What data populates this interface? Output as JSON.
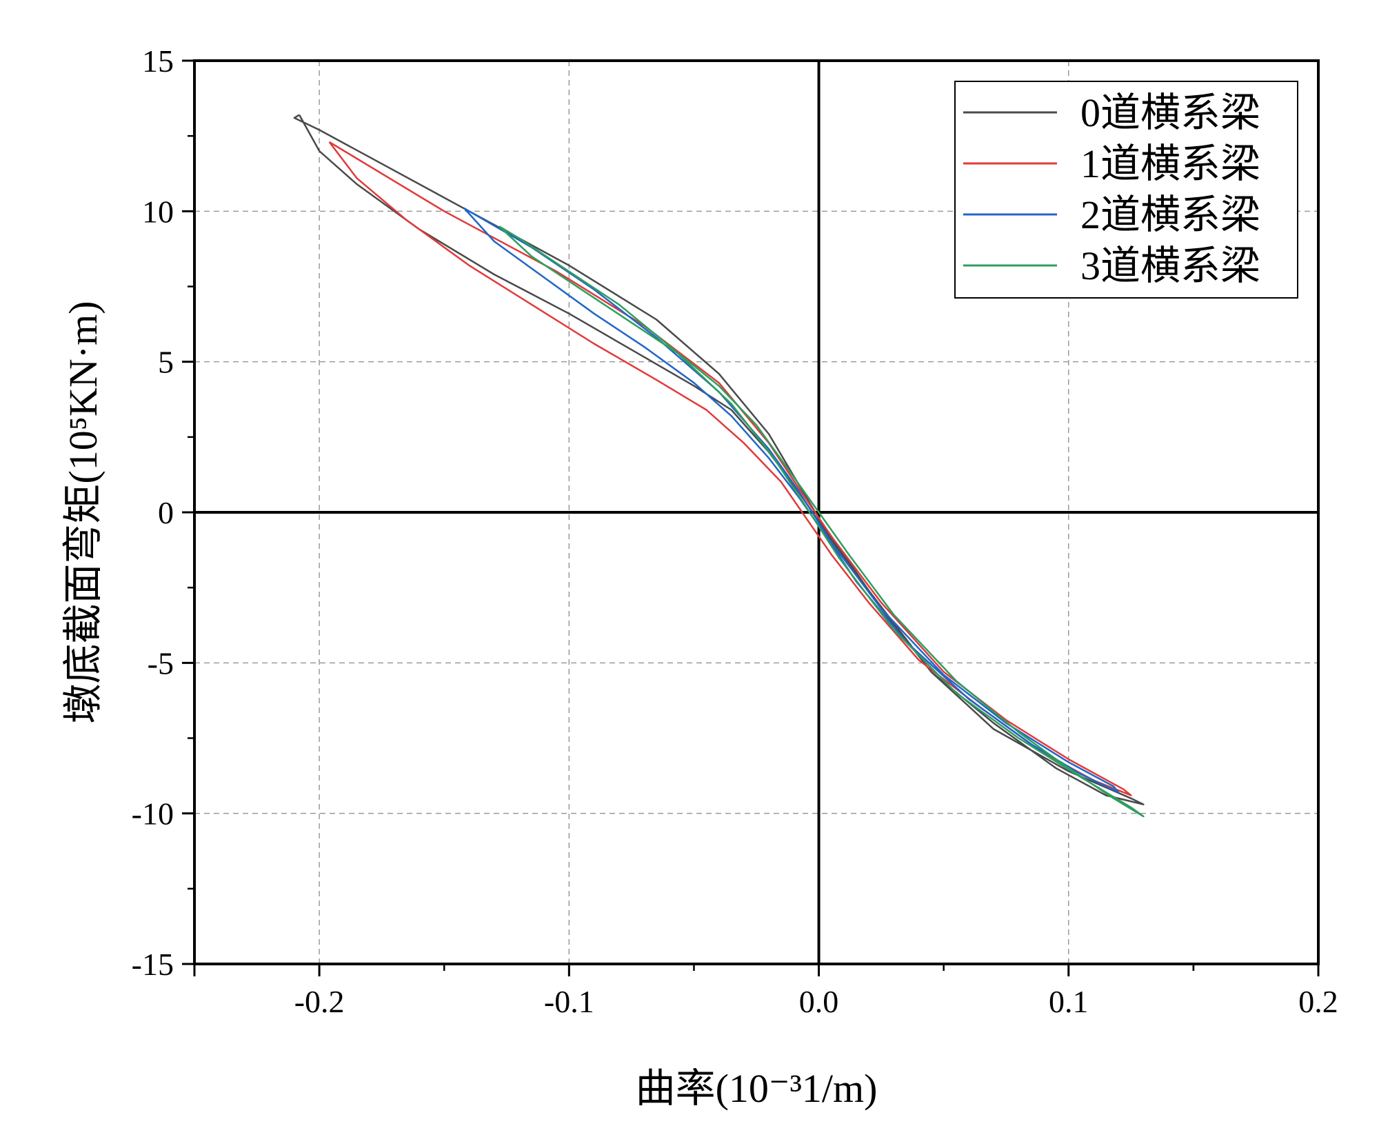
{
  "chart_data": {
    "type": "line",
    "title": "",
    "xlabel": "曲率(10⁻³1/m)",
    "ylabel": "墩底截面弯矩(10⁵KN·m)",
    "xlim": [
      -0.25,
      0.2
    ],
    "ylim": [
      -15,
      15
    ],
    "xticks": [
      -0.2,
      -0.1,
      0.0,
      0.1,
      0.2
    ],
    "xtick_labels": [
      "-0.2",
      "-0.1",
      "0.0",
      "0.1",
      "0.2"
    ],
    "yticks": [
      -15,
      -10,
      -5,
      0,
      5,
      10,
      15
    ],
    "ytick_labels": [
      "-15",
      "-10",
      "-5",
      "0",
      "5",
      "10",
      "15"
    ],
    "grid": true,
    "zero_lines": true,
    "legend_position": "top-right",
    "series": [
      {
        "name": "0道横系梁",
        "color": "#4a4a4a",
        "x": [
          -0.208,
          -0.2,
          -0.185,
          -0.16,
          -0.13,
          -0.1,
          -0.075,
          -0.05,
          -0.035,
          -0.02,
          -0.01,
          0.0,
          0.01,
          0.025,
          0.045,
          0.07,
          0.095,
          0.115,
          0.13,
          0.125,
          0.1,
          0.07,
          0.045,
          0.02,
          0.0,
          -0.01,
          -0.02,
          -0.04,
          -0.065,
          -0.1,
          -0.14,
          -0.18,
          -0.2,
          -0.21,
          -0.208
        ],
        "y": [
          13.2,
          12.0,
          10.9,
          9.4,
          7.9,
          6.6,
          5.4,
          4.2,
          3.4,
          2.0,
          0.9,
          -0.3,
          -1.5,
          -3.2,
          -5.3,
          -7.0,
          -8.5,
          -9.4,
          -9.7,
          -9.5,
          -8.6,
          -7.2,
          -5.3,
          -2.6,
          -0.2,
          1.2,
          2.6,
          4.6,
          6.4,
          8.2,
          10.0,
          11.8,
          12.7,
          13.1,
          13.2
        ]
      },
      {
        "name": "1道横系梁",
        "color": "#e03a3a",
        "x": [
          -0.196,
          -0.185,
          -0.165,
          -0.14,
          -0.115,
          -0.09,
          -0.065,
          -0.045,
          -0.03,
          -0.015,
          -0.005,
          0.005,
          0.02,
          0.04,
          0.065,
          0.09,
          0.11,
          0.125,
          0.122,
          0.1,
          0.075,
          0.05,
          0.025,
          0.005,
          -0.008,
          -0.02,
          -0.04,
          -0.07,
          -0.105,
          -0.15,
          -0.19,
          -0.196
        ],
        "y": [
          12.3,
          11.1,
          9.7,
          8.2,
          6.9,
          5.6,
          4.4,
          3.4,
          2.3,
          1.0,
          -0.2,
          -1.4,
          -3.0,
          -4.9,
          -6.5,
          -8.0,
          -8.9,
          -9.4,
          -9.2,
          -8.2,
          -6.9,
          -5.3,
          -3.0,
          -0.8,
          0.8,
          2.3,
          4.3,
          6.2,
          8.0,
          10.0,
          12.0,
          12.3
        ]
      },
      {
        "name": "2道横系梁",
        "color": "#2266c8",
        "x": [
          -0.142,
          -0.13,
          -0.11,
          -0.09,
          -0.07,
          -0.05,
          -0.035,
          -0.02,
          -0.008,
          0.003,
          0.015,
          0.035,
          0.06,
          0.085,
          0.105,
          0.12,
          0.118,
          0.1,
          0.075,
          0.05,
          0.025,
          0.005,
          -0.008,
          -0.02,
          -0.04,
          -0.065,
          -0.09,
          -0.115,
          -0.14,
          -0.142
        ],
        "y": [
          10.1,
          9.0,
          7.8,
          6.6,
          5.5,
          4.3,
          3.2,
          1.8,
          0.5,
          -0.8,
          -2.3,
          -4.3,
          -6.2,
          -7.7,
          -8.7,
          -9.3,
          -9.1,
          -8.3,
          -7.0,
          -5.4,
          -3.2,
          -1.0,
          0.7,
          2.1,
          4.0,
          5.8,
          7.4,
          8.8,
          10.0,
          10.1
        ]
      },
      {
        "name": "3道横系梁",
        "color": "#2e9e5e",
        "x": [
          -0.128,
          -0.115,
          -0.095,
          -0.075,
          -0.055,
          -0.04,
          -0.025,
          -0.012,
          0.0,
          0.012,
          0.03,
          0.055,
          0.08,
          0.1,
          0.118,
          0.13,
          0.125,
          0.105,
          0.08,
          0.055,
          0.03,
          0.008,
          -0.006,
          -0.018,
          -0.035,
          -0.058,
          -0.08,
          -0.1,
          -0.12,
          -0.128
        ],
        "y": [
          9.5,
          8.5,
          7.4,
          6.3,
          5.2,
          4.2,
          2.9,
          1.4,
          0.0,
          -1.4,
          -3.4,
          -5.6,
          -7.3,
          -8.5,
          -9.5,
          -10.1,
          -9.8,
          -8.8,
          -7.5,
          -6.0,
          -3.9,
          -1.5,
          0.3,
          1.8,
          3.6,
          5.4,
          6.9,
          8.0,
          9.1,
          9.5
        ]
      }
    ]
  }
}
